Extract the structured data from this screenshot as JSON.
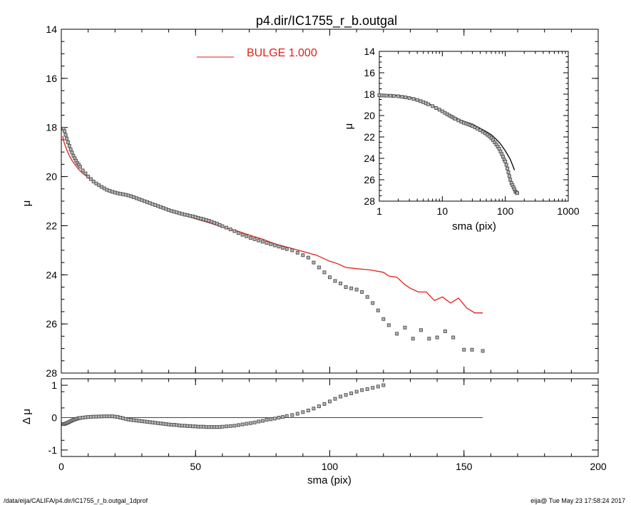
{
  "title": "p4.dir/IC1755_r_b.outgal",
  "footer_left": "/data/eija/CALIFA/p4.dir/IC1755_r_b.outgal_1dprof",
  "footer_right": "eija@  Tue May 23 17:58:24 2017",
  "colors": {
    "bulge": "#e0201a",
    "points": "#555555",
    "axes": "#000000"
  },
  "chart_data": [
    {
      "panel": "main",
      "type": "line",
      "xlabel": "sma (pix)",
      "ylabel": "μ",
      "xlim": [
        0,
        200
      ],
      "ylim": [
        28,
        14
      ],
      "xticks": [
        0,
        50,
        100,
        150,
        200
      ],
      "yticks": [
        14,
        16,
        18,
        20,
        22,
        24,
        26,
        28
      ],
      "legend": {
        "label": "BULGE  1.000",
        "placement": "top"
      },
      "series": [
        {
          "name": "BULGE  1.000",
          "kind": "line",
          "x": [
            0.5,
            1,
            2,
            3,
            4,
            5,
            6,
            7,
            8,
            9,
            10,
            12,
            14,
            16,
            18,
            20,
            22,
            24,
            26,
            28,
            30,
            35,
            40,
            45,
            50,
            55,
            60,
            65,
            70,
            75,
            80,
            85,
            90,
            95,
            100,
            103,
            106,
            110,
            115,
            120,
            122,
            125,
            128,
            130,
            133,
            136,
            139,
            142,
            145,
            148,
            151,
            154,
            157
          ],
          "y": [
            18.35,
            18.6,
            18.9,
            19.15,
            19.35,
            19.5,
            19.65,
            19.77,
            19.87,
            19.95,
            20.05,
            20.2,
            20.33,
            20.45,
            20.55,
            20.6,
            20.65,
            20.7,
            20.75,
            20.85,
            20.95,
            21.15,
            21.35,
            21.55,
            21.72,
            21.88,
            22.05,
            22.2,
            22.38,
            22.55,
            22.75,
            22.9,
            23.05,
            23.2,
            23.45,
            23.55,
            23.7,
            23.75,
            23.8,
            23.9,
            24.05,
            24.1,
            24.4,
            24.55,
            24.7,
            24.7,
            25.05,
            24.9,
            25.15,
            24.95,
            25.35,
            25.55,
            25.55
          ]
        },
        {
          "name": "",
          "kind": "points",
          "x": [
            0.8,
            1.2,
            1.6,
            2,
            2.5,
            3,
            3.5,
            4,
            4.5,
            5,
            5.5,
            6,
            6.5,
            7,
            8,
            9,
            10,
            11,
            12,
            13,
            14,
            15,
            16,
            17,
            18,
            19,
            20,
            21,
            22,
            23,
            24,
            25,
            26,
            27,
            28,
            29,
            30,
            31,
            32,
            33,
            34,
            35,
            36,
            37,
            38,
            39,
            40,
            41,
            42,
            43,
            44,
            45,
            46,
            47,
            48,
            49,
            50,
            51,
            52,
            53,
            54,
            55,
            56,
            57,
            58,
            59,
            60,
            61.5,
            63,
            64.5,
            66,
            67.5,
            69,
            70.5,
            72,
            73.5,
            75,
            76.5,
            78,
            79.5,
            81,
            82.5,
            84,
            86,
            88,
            90,
            92,
            94,
            96,
            98,
            100,
            102,
            104,
            106,
            108,
            110,
            112,
            114,
            116,
            118,
            120,
            122,
            125,
            128,
            131,
            134,
            137,
            140,
            143,
            146,
            150,
            153,
            157
          ],
          "y": [
            18.05,
            18.15,
            18.3,
            18.45,
            18.6,
            18.75,
            18.9,
            19.02,
            19.15,
            19.25,
            19.35,
            19.45,
            19.52,
            19.6,
            19.75,
            19.87,
            20.0,
            20.1,
            20.2,
            20.28,
            20.35,
            20.42,
            20.48,
            20.54,
            20.58,
            20.62,
            20.65,
            20.68,
            20.7,
            20.72,
            20.74,
            20.77,
            20.8,
            20.84,
            20.88,
            20.92,
            20.96,
            21.0,
            21.04,
            21.08,
            21.12,
            21.16,
            21.2,
            21.24,
            21.28,
            21.32,
            21.36,
            21.4,
            21.43,
            21.46,
            21.49,
            21.52,
            21.55,
            21.57,
            21.6,
            21.62,
            21.65,
            21.68,
            21.71,
            21.74,
            21.77,
            21.8,
            21.84,
            21.88,
            21.92,
            21.97,
            22.02,
            22.08,
            22.15,
            22.22,
            22.3,
            22.37,
            22.43,
            22.5,
            22.55,
            22.6,
            22.65,
            22.7,
            22.75,
            22.8,
            22.85,
            22.9,
            22.95,
            23.0,
            23.1,
            23.2,
            23.3,
            23.5,
            23.7,
            23.9,
            24.1,
            24.25,
            24.35,
            24.5,
            24.55,
            24.6,
            24.7,
            24.9,
            25.15,
            25.45,
            25.8,
            26.05,
            26.4,
            26.15,
            26.6,
            26.25,
            26.6,
            26.55,
            26.3,
            26.55,
            27.05,
            27.05,
            27.1
          ]
        }
      ]
    },
    {
      "panel": "residual",
      "type": "scatter",
      "xlabel": "sma (pix)",
      "ylabel": "Δ μ",
      "xlim": [
        0,
        200
      ],
      "ylim": [
        -1.2,
        1.2
      ],
      "xticks": [
        0,
        50,
        100,
        150,
        200
      ],
      "yticks": [
        -1,
        0,
        1
      ],
      "reference_line": {
        "y": 0,
        "x_end": 157
      },
      "series": [
        {
          "name": "",
          "kind": "points",
          "x": [
            0.8,
            1.2,
            1.6,
            2,
            2.5,
            3,
            3.5,
            4,
            4.5,
            5,
            5.5,
            6,
            6.5,
            7,
            8,
            9,
            10,
            11,
            12,
            13,
            14,
            15,
            16,
            17,
            18,
            19,
            20,
            21,
            22,
            23,
            24,
            25,
            26,
            27,
            28,
            29,
            30,
            31,
            32,
            33,
            34,
            35,
            36,
            37,
            38,
            39,
            40,
            41,
            42,
            43,
            44,
            45,
            46,
            47,
            48,
            49,
            50,
            51,
            52,
            53,
            54,
            55,
            56,
            57,
            58,
            59,
            60,
            61.5,
            63,
            64.5,
            66,
            67.5,
            69,
            70.5,
            72,
            73.5,
            75,
            76.5,
            78,
            79.5,
            81,
            82.5,
            84,
            86,
            88,
            90,
            92,
            94,
            96,
            98,
            100,
            102,
            104,
            106,
            108,
            110,
            112,
            114,
            116,
            118,
            120
          ],
          "y": [
            -0.2,
            -0.2,
            -0.18,
            -0.17,
            -0.15,
            -0.13,
            -0.11,
            -0.09,
            -0.07,
            -0.06,
            -0.04,
            -0.03,
            -0.02,
            -0.01,
            0.0,
            0.01,
            0.02,
            0.025,
            0.03,
            0.03,
            0.035,
            0.035,
            0.04,
            0.04,
            0.04,
            0.04,
            0.03,
            0.02,
            0.0,
            -0.02,
            -0.04,
            -0.06,
            -0.07,
            -0.08,
            -0.09,
            -0.1,
            -0.11,
            -0.12,
            -0.13,
            -0.14,
            -0.15,
            -0.16,
            -0.17,
            -0.18,
            -0.19,
            -0.2,
            -0.21,
            -0.22,
            -0.22,
            -0.23,
            -0.24,
            -0.25,
            -0.25,
            -0.26,
            -0.26,
            -0.27,
            -0.27,
            -0.28,
            -0.28,
            -0.28,
            -0.29,
            -0.29,
            -0.29,
            -0.29,
            -0.29,
            -0.29,
            -0.28,
            -0.27,
            -0.26,
            -0.25,
            -0.23,
            -0.21,
            -0.19,
            -0.17,
            -0.15,
            -0.12,
            -0.1,
            -0.07,
            -0.05,
            -0.03,
            0.0,
            0.02,
            0.05,
            0.08,
            0.12,
            0.17,
            0.22,
            0.28,
            0.35,
            0.42,
            0.5,
            0.58,
            0.65,
            0.7,
            0.75,
            0.8,
            0.85,
            0.88,
            0.92,
            0.96,
            1.0
          ]
        }
      ]
    },
    {
      "panel": "inset",
      "type": "line",
      "xlabel": "sma (pix)",
      "ylabel": "μ",
      "xscale": "log",
      "xlim": [
        1,
        1000
      ],
      "ylim": [
        28,
        14
      ],
      "xticks": [
        1,
        10,
        100,
        1000
      ],
      "yticks": [
        14,
        16,
        18,
        20,
        22,
        24,
        26,
        28
      ],
      "series": [
        {
          "name": "",
          "kind": "line",
          "x": [
            1,
            1.5,
            2,
            3,
            4,
            5,
            7,
            10,
            15,
            20,
            25,
            30,
            40,
            50,
            60,
            70,
            80,
            90,
            100,
            110,
            120,
            130,
            140
          ],
          "y": [
            18.05,
            18.1,
            18.15,
            18.3,
            18.5,
            18.7,
            19.05,
            19.55,
            20.1,
            20.45,
            20.65,
            20.8,
            21.2,
            21.5,
            21.8,
            22.15,
            22.5,
            22.9,
            23.3,
            23.7,
            24.1,
            24.6,
            25.1
          ]
        },
        {
          "name": "",
          "kind": "points",
          "x": [
            1,
            1.1,
            1.2,
            1.3,
            1.5,
            1.7,
            2,
            2.3,
            2.6,
            3,
            3.5,
            4,
            4.5,
            5,
            5.5,
            6,
            7,
            8,
            9,
            10,
            11,
            12,
            13,
            14,
            15,
            16,
            18,
            20,
            22,
            24,
            26,
            28,
            30,
            33,
            36,
            40,
            44,
            48,
            52,
            56,
            60,
            64,
            68,
            72,
            76,
            80,
            84,
            88,
            92,
            96,
            100,
            104,
            108,
            112,
            116,
            120,
            125,
            130,
            135,
            140,
            145,
            150,
            155
          ],
          "y": [
            18.1,
            18.12,
            18.13,
            18.14,
            18.15,
            18.17,
            18.2,
            18.25,
            18.3,
            18.37,
            18.45,
            18.55,
            18.65,
            18.75,
            18.85,
            18.95,
            19.12,
            19.3,
            19.45,
            19.6,
            19.75,
            19.88,
            20.0,
            20.1,
            20.2,
            20.3,
            20.45,
            20.58,
            20.68,
            20.75,
            20.82,
            20.9,
            20.98,
            21.1,
            21.22,
            21.37,
            21.52,
            21.66,
            21.8,
            21.95,
            22.12,
            22.3,
            22.5,
            22.7,
            22.9,
            23.1,
            23.35,
            23.6,
            23.85,
            24.1,
            24.3,
            24.6,
            24.95,
            25.3,
            25.65,
            26.0,
            26.3,
            26.5,
            26.7,
            26.9,
            27.1,
            27.2,
            27.25
          ]
        }
      ]
    }
  ]
}
